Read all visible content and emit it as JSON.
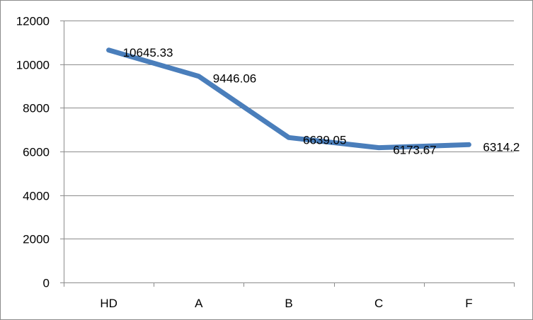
{
  "chart_data": {
    "type": "line",
    "categories": [
      "HD",
      "A",
      "B",
      "C",
      "F"
    ],
    "series": [
      {
        "values": [
          10645.33,
          9446.06,
          6639.05,
          6173.67,
          6314.2
        ],
        "data_labels": [
          "10645.33",
          "9446.06",
          "6639.05",
          "6173.67",
          "6314.2"
        ],
        "color": "#4a7ebb"
      }
    ],
    "ylim": [
      0,
      12000
    ],
    "yticks": [
      0,
      2000,
      4000,
      6000,
      8000,
      10000,
      12000
    ],
    "ytick_labels": [
      "0",
      "2000",
      "4000",
      "6000",
      "8000",
      "10000",
      "12000"
    ],
    "grid": true,
    "grid_color": "#8c8c8c",
    "axis_color": "#8c8c8c",
    "title": "",
    "xlabel": "",
    "ylabel": ""
  }
}
